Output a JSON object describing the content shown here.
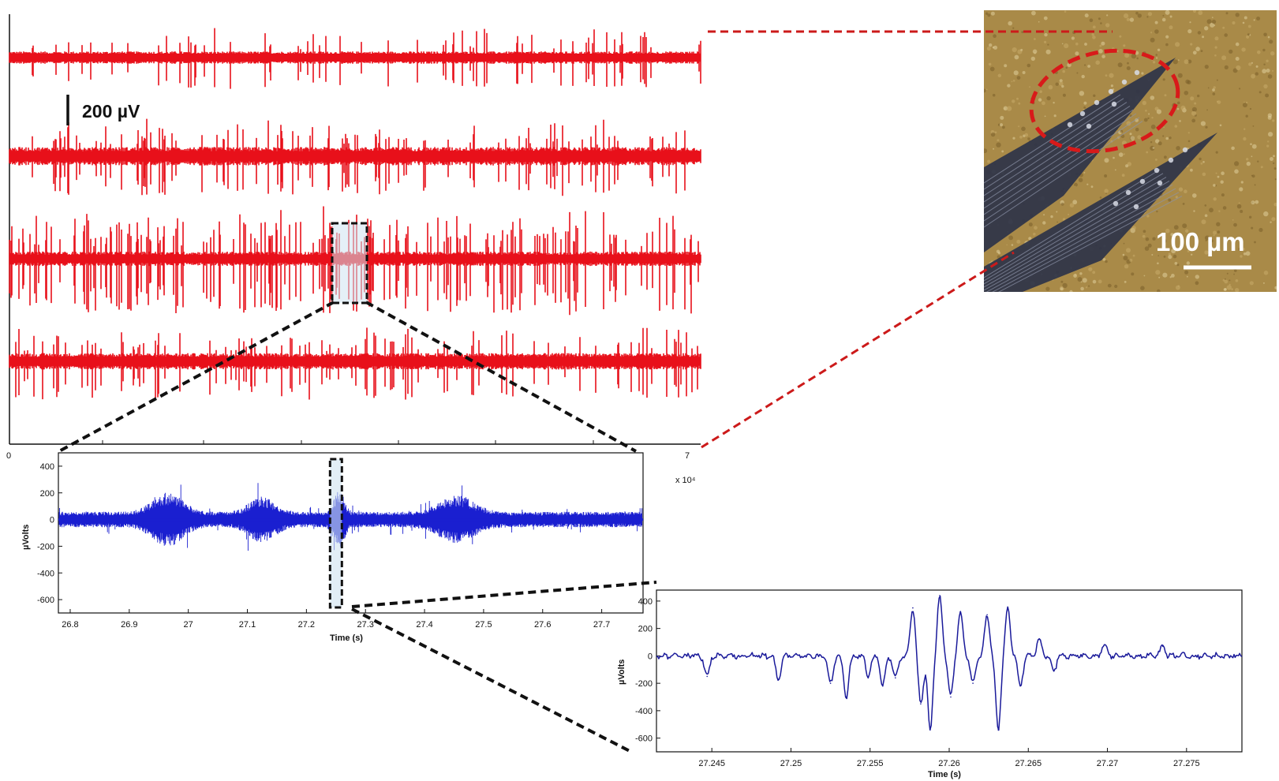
{
  "colors": {
    "raw_trace": "#e8101a",
    "zoom_trace": "#1a1fd0",
    "detail_trace": "#1a1a9a",
    "highlight_fill": "#cfe3f0",
    "connector_black": "#111111",
    "connector_red": "#cc1a1a",
    "photo_tissue": "#a98a48",
    "photo_probe": "#2e3448"
  },
  "icons": {
    "photo": "electrode-probe-micrograph"
  },
  "scale_bars": {
    "voltage": "200 µV",
    "photo": "100 µm"
  },
  "chart_data": [
    {
      "id": "raw",
      "type": "line",
      "channels": 4,
      "xlim": [
        0,
        7
      ],
      "xticks": [
        "0",
        "7"
      ],
      "xmultiplier": "x 10⁴",
      "scale_bar": "200 µV"
    },
    {
      "id": "zoom",
      "type": "line",
      "xlim": [
        26.78,
        27.77
      ],
      "ylim": [
        -700,
        500
      ],
      "xticks": [
        26.8,
        26.9,
        27,
        27.1,
        27.2,
        27.3,
        27.4,
        27.5,
        27.6,
        27.7
      ],
      "xtick_labels": [
        "26.8",
        "26.9",
        "27",
        "27.1",
        "27.2",
        "27.3",
        "27.4",
        "27.5",
        "27.6",
        "27.7"
      ],
      "yticks": [
        400,
        200,
        0,
        -200,
        -400,
        -600
      ],
      "ytick_labels": [
        "400",
        "200",
        "0",
        "-200",
        "-400",
        "-600"
      ],
      "xlabel": "Time (s)",
      "ylabel": "µVolts",
      "highlight": [
        27.24,
        27.26
      ]
    },
    {
      "id": "detail",
      "type": "line",
      "xlim": [
        27.2415,
        27.2785
      ],
      "ylim": [
        -700,
        480
      ],
      "xticks": [
        27.245,
        27.25,
        27.255,
        27.26,
        27.265,
        27.27,
        27.275
      ],
      "xtick_labels": [
        "27.245",
        "27.25",
        "27.255",
        "27.26",
        "27.265",
        "27.27",
        "27.275"
      ],
      "yticks": [
        400,
        200,
        0,
        -200,
        -400,
        -600
      ],
      "ytick_labels": [
        "400",
        "200",
        "0",
        "-200",
        "-400",
        "-600"
      ],
      "xlabel": "Time (s)",
      "ylabel": "µVolts",
      "events": [
        {
          "x": 27.2447,
          "y": -150
        },
        {
          "x": 27.2492,
          "y": -170
        },
        {
          "x": 27.2525,
          "y": -200
        },
        {
          "x": 27.2535,
          "y": -300
        },
        {
          "x": 27.2549,
          "y": -150
        },
        {
          "x": 27.2558,
          "y": -220
        },
        {
          "x": 27.2566,
          "y": -160
        },
        {
          "x": 27.2577,
          "y": 350
        },
        {
          "x": 27.2582,
          "y": -350
        },
        {
          "x": 27.2588,
          "y": -540
        },
        {
          "x": 27.2594,
          "y": 440
        },
        {
          "x": 27.2601,
          "y": -300
        },
        {
          "x": 27.2607,
          "y": 320
        },
        {
          "x": 27.2615,
          "y": -200
        },
        {
          "x": 27.2624,
          "y": 300
        },
        {
          "x": 27.2631,
          "y": -540
        },
        {
          "x": 27.2637,
          "y": 350
        },
        {
          "x": 27.2645,
          "y": -220
        },
        {
          "x": 27.2657,
          "y": 120
        },
        {
          "x": 27.2666,
          "y": -110
        },
        {
          "x": 27.2698,
          "y": 80
        },
        {
          "x": 27.2735,
          "y": 70
        }
      ]
    }
  ]
}
